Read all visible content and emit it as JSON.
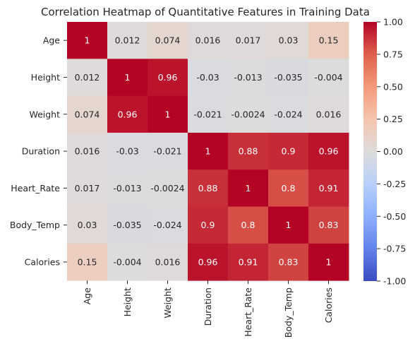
{
  "chart_data": {
    "type": "heatmap",
    "title": "Correlation Heatmap of Quantitative Features in Training Data",
    "xlabel": "",
    "ylabel": "",
    "rows": [
      "Age",
      "Height",
      "Weight",
      "Duration",
      "Heart_Rate",
      "Body_Temp",
      "Calories"
    ],
    "columns": [
      "Age",
      "Height",
      "Weight",
      "Duration",
      "Heart_Rate",
      "Body_Temp",
      "Calories"
    ],
    "values": [
      [
        1,
        0.012,
        0.074,
        0.016,
        0.017,
        0.03,
        0.15
      ],
      [
        0.012,
        1,
        0.96,
        -0.03,
        -0.013,
        -0.035,
        -0.004
      ],
      [
        0.074,
        0.96,
        1,
        -0.021,
        -0.0024,
        -0.024,
        0.016
      ],
      [
        0.016,
        -0.03,
        -0.021,
        1,
        0.88,
        0.9,
        0.96
      ],
      [
        0.017,
        -0.013,
        -0.0024,
        0.88,
        1,
        0.8,
        0.91
      ],
      [
        0.03,
        -0.035,
        -0.024,
        0.9,
        0.8,
        1,
        0.83
      ],
      [
        0.15,
        -0.004,
        0.016,
        0.96,
        0.91,
        0.83,
        1
      ]
    ],
    "cell_labels": [
      [
        "1",
        "0.012",
        "0.074",
        "0.016",
        "0.017",
        "0.03",
        "0.15"
      ],
      [
        "0.012",
        "1",
        "0.96",
        "-0.03",
        "-0.013",
        "-0.035",
        "-0.004"
      ],
      [
        "0.074",
        "0.96",
        "1",
        "-0.021",
        "-0.0024",
        "-0.024",
        "0.016"
      ],
      [
        "0.016",
        "-0.03",
        "-0.021",
        "1",
        "0.88",
        "0.9",
        "0.96"
      ],
      [
        "0.017",
        "-0.013",
        "-0.0024",
        "0.88",
        "1",
        "0.8",
        "0.91"
      ],
      [
        "0.03",
        "-0.035",
        "-0.024",
        "0.9",
        "0.8",
        "1",
        "0.83"
      ],
      [
        "0.15",
        "-0.004",
        "0.016",
        "0.96",
        "0.91",
        "0.83",
        "1"
      ]
    ],
    "colorbar": {
      "range": [
        -1,
        1
      ],
      "ticks": [
        "-1.00",
        "-0.75",
        "-0.50",
        "-0.25",
        "0.00",
        "0.25",
        "0.50",
        "0.75",
        "1.00"
      ],
      "colormap": "coolwarm",
      "low_color": "#3b4cc0",
      "mid_color": "#dddcdc",
      "high_color": "#b40426"
    }
  }
}
